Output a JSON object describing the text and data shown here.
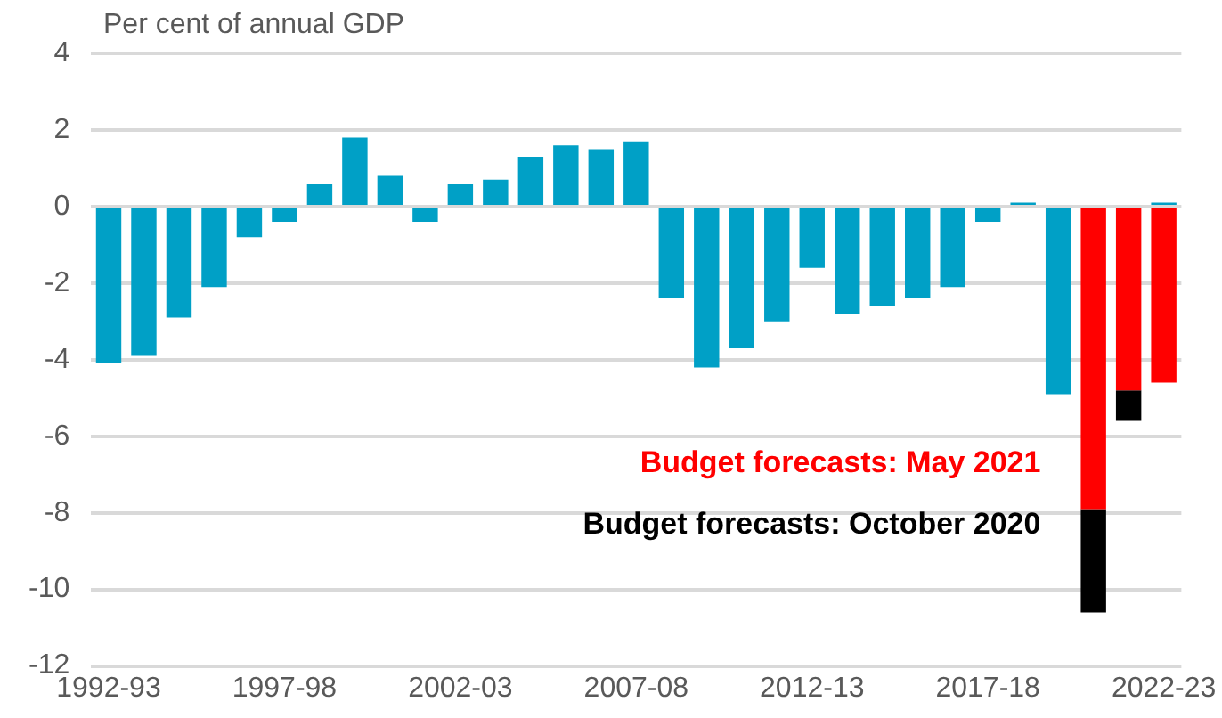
{
  "chart_data": {
    "type": "bar",
    "ylabel": "Per cent of annual GDP",
    "stacked": true,
    "categories": [
      "1992-93",
      null,
      null,
      null,
      null,
      "1997-98",
      null,
      null,
      null,
      null,
      "2002-03",
      null,
      null,
      null,
      null,
      "2007-08",
      null,
      null,
      null,
      null,
      "2012-13",
      null,
      null,
      null,
      null,
      "2017-18",
      null,
      null,
      null,
      null,
      "2022-23"
    ],
    "series": [
      {
        "color": "#00a0c6",
        "values": [
          -4.1,
          -3.9,
          -2.9,
          -2.1,
          -0.8,
          -0.4,
          0.6,
          1.8,
          0.8,
          -0.4,
          0.6,
          0.7,
          1.3,
          1.6,
          1.5,
          1.7,
          -2.4,
          -4.2,
          -3.7,
          -3.0,
          -1.6,
          -2.8,
          -2.6,
          -2.4,
          -2.1,
          -0.4,
          0.1,
          -4.9,
          null,
          null,
          0.1
        ]
      },
      {
        "name": "Budget forecasts: May 2021",
        "color": "#ff0000",
        "values": [
          null,
          null,
          null,
          null,
          null,
          null,
          null,
          null,
          null,
          null,
          null,
          null,
          null,
          null,
          null,
          null,
          null,
          null,
          null,
          null,
          null,
          null,
          null,
          null,
          null,
          null,
          null,
          null,
          -7.9,
          -4.8,
          -4.6
        ]
      },
      {
        "name": "Budget forecasts: October 2020",
        "color": "#000000",
        "values": [
          null,
          null,
          null,
          null,
          null,
          null,
          null,
          null,
          null,
          null,
          null,
          null,
          null,
          null,
          null,
          null,
          null,
          null,
          null,
          null,
          null,
          null,
          null,
          null,
          null,
          null,
          null,
          null,
          -2.7,
          -0.8,
          null
        ]
      }
    ],
    "ylim": [
      -12,
      4
    ],
    "yticks": [
      -12,
      -10,
      -8,
      -6,
      -4,
      -2,
      0,
      2,
      4
    ],
    "grid": "y",
    "legend": false
  }
}
